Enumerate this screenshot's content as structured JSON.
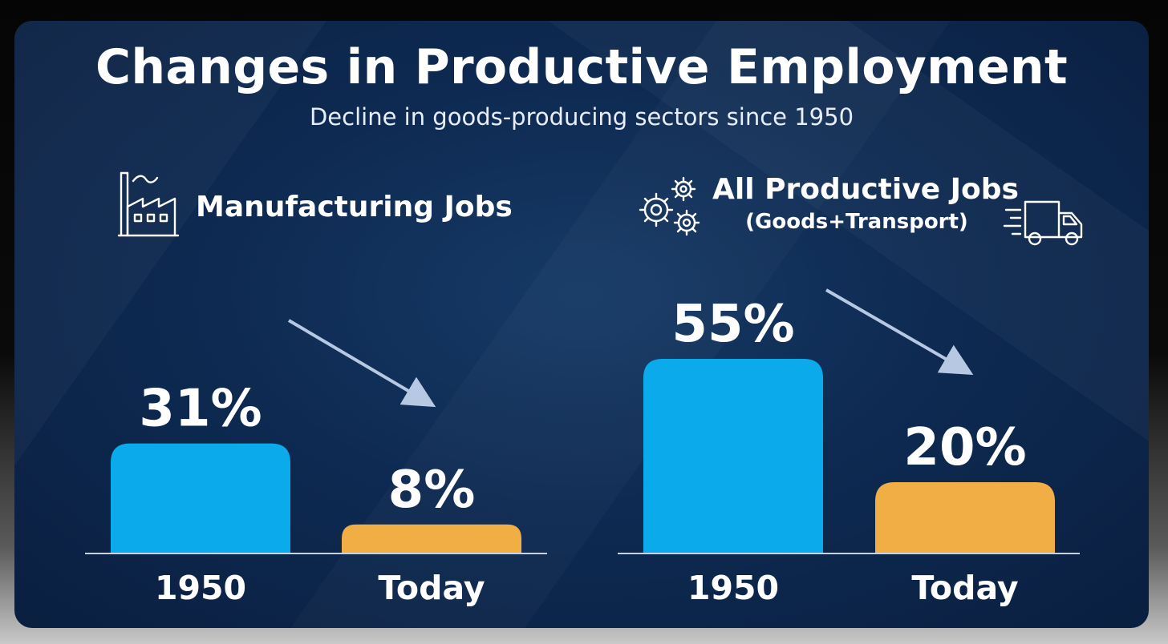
{
  "colors": {
    "bar_1950": "#0baaea",
    "bar_today": "#f0ae45",
    "baseline": "#c8d2e0",
    "arrow": "#b7c9e2"
  },
  "chart_data": {
    "type": "bar",
    "title": "Changes in Productive Employment",
    "subtitle": "Decline in goods-producing sectors since 1950",
    "panels": [
      {
        "title": "Manufacturing Jobs",
        "subtitle": "",
        "icon": "factory-icon",
        "categories": [
          "1950",
          "Today"
        ],
        "values": [
          31,
          8
        ],
        "value_labels": [
          "31%",
          "8%"
        ],
        "unit": "%"
      },
      {
        "title": "All Productive Jobs",
        "subtitle": "(Goods+Transport)",
        "icon": "gears-icon",
        "icon_right": "truck-icon",
        "categories": [
          "1950",
          "Today"
        ],
        "values": [
          55,
          20
        ],
        "value_labels": [
          "55%",
          "20%"
        ],
        "unit": "%"
      }
    ]
  }
}
